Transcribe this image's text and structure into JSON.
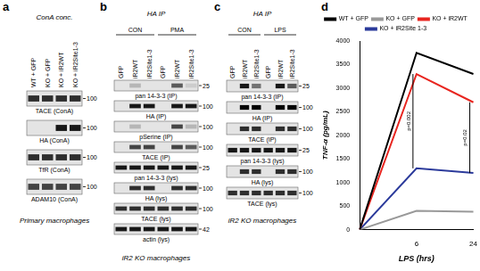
{
  "blots": [
    {
      "label": "a",
      "header": "ConA conc.",
      "groups": [],
      "lanes": [
        "WT + GFP",
        "KO + GFP",
        "KO + iR2WT",
        "KO + iR2Site1-3"
      ],
      "rows": [
        {
          "name": "TACE (ConA)",
          "mw": 100,
          "bands": [
            0.8,
            0.8,
            0.8,
            0.8
          ]
        },
        {
          "name": "HA (ConA)",
          "mw": 100,
          "bands": [
            0,
            0,
            0.9,
            0.9
          ]
        },
        {
          "name": "TfR (ConA)",
          "mw": 100,
          "bands": [
            0.8,
            0.8,
            0.8,
            0.8
          ]
        },
        {
          "name": "ADAM10 (ConA)",
          "mw": 100,
          "bands": [
            0.7,
            0.7,
            0.7,
            0.7
          ]
        }
      ],
      "footer": "Primary macrophages"
    },
    {
      "label": "b",
      "header": "HA IP",
      "groups": [
        {
          "name": "CON",
          "lanes": 3
        },
        {
          "name": "PMA",
          "lanes": 3
        }
      ],
      "lanes": [
        "GFP",
        "iR2WT",
        "iR2Site1-3",
        "GFP",
        "iR2WT",
        "iR2Site1-3"
      ],
      "rows": [
        {
          "name": "pan 14-3-3 (IP)",
          "mw": 25,
          "bands": [
            0,
            0.2,
            0,
            0,
            0.6,
            0.1
          ]
        },
        {
          "name": "HA (IP)",
          "mw": 100,
          "bands": [
            0,
            0.9,
            0.9,
            0,
            0.9,
            0.9
          ]
        },
        {
          "name": "pSerine (IP)",
          "mw": 100,
          "bands": [
            0,
            0.2,
            0,
            0,
            0.7,
            0.2
          ]
        },
        {
          "name": "TACE (IP)",
          "mw": 100,
          "bands": [
            0,
            0.7,
            0.7,
            0,
            0.7,
            0.6
          ]
        },
        {
          "name": "pan 14-3-3 (lys)",
          "mw": 25,
          "bands": [
            0.9,
            0.9,
            0.9,
            0.9,
            0.9,
            0.9
          ]
        },
        {
          "name": "HA (lys)",
          "mw": 100,
          "bands": [
            0,
            0.8,
            0.8,
            0,
            0.8,
            0.8
          ]
        },
        {
          "name": "TACE (lys)",
          "mw": 100,
          "bands": [
            0.8,
            0.8,
            0.8,
            0.8,
            0.8,
            0.8
          ]
        },
        {
          "name": "actin (lys)",
          "mw": 42,
          "bands": [
            0.9,
            0.9,
            0.9,
            0.9,
            0.9,
            0.9
          ]
        }
      ],
      "footer": "iR2 KO macrophages"
    },
    {
      "label": "c",
      "header": "HA IP",
      "groups": [
        {
          "name": "CON",
          "lanes": 3
        },
        {
          "name": "LPS",
          "lanes": 3
        }
      ],
      "lanes": [
        "GFP",
        "iR2WT",
        "iR2Site1-3",
        "GFP",
        "iR2WT",
        "iR2Site1-3"
      ],
      "rows": [
        {
          "name": "pan 14-3-3 (IP)",
          "mw": 25,
          "bands": [
            0,
            0.9,
            0.5,
            0,
            0.9,
            0.6
          ]
        },
        {
          "name": "HA (IP)",
          "mw": 100,
          "bands": [
            0,
            1,
            1,
            0,
            1,
            1
          ]
        },
        {
          "name": "TACE (IP)",
          "mw": 100,
          "bands": [
            0,
            0.8,
            0.8,
            0,
            0.8,
            0.8
          ]
        },
        {
          "name": "pan 14-3-3 (lys)",
          "mw": 25,
          "bands": [
            0.9,
            0.9,
            0.9,
            0.9,
            0.9,
            0.9
          ]
        },
        {
          "name": "HA (lys)",
          "mw": 100,
          "bands": [
            0,
            0.8,
            0.8,
            0,
            0.8,
            0.8
          ]
        },
        {
          "name": "TACE (lys)",
          "mw": 100,
          "bands": [
            0.8,
            0.8,
            0.8,
            0.8,
            0.8,
            0.8
          ]
        }
      ],
      "footer": "iR2 KO macrophages"
    }
  ],
  "chart_data": {
    "type": "line",
    "label": "d",
    "x_label": "LPS (hrs)",
    "y_label": "TNF-α (pg/mL)",
    "categories": [
      null,
      "6",
      "24"
    ],
    "series": [
      {
        "name": "WT + GFP",
        "color": "#000000",
        "values": [
          0,
          3750,
          3300
        ]
      },
      {
        "name": "KO + GFP",
        "color": "#999999",
        "values": [
          0,
          400,
          380
        ]
      },
      {
        "name": "KO + iR2WT",
        "color": "#e8251f",
        "values": [
          0,
          3300,
          2700
        ]
      },
      {
        "name": "KO + iR2Site 1-3",
        "color": "#2b3a9b",
        "values": [
          0,
          1300,
          1200
        ]
      }
    ],
    "ylim": [
      0,
      4000
    ],
    "yticks": [
      0,
      500,
      1000,
      1500,
      2000,
      2500,
      3000,
      3500,
      4000
    ],
    "grid": false,
    "legend": "top",
    "annotations": [
      {
        "text": "p=0.002",
        "x": "6",
        "between": [
          "KO + iR2WT",
          "KO + iR2Site 1-3"
        ]
      },
      {
        "text": "p=0.02",
        "x": "24",
        "between": [
          "KO + iR2WT",
          "KO + iR2Site 1-3"
        ]
      }
    ]
  }
}
